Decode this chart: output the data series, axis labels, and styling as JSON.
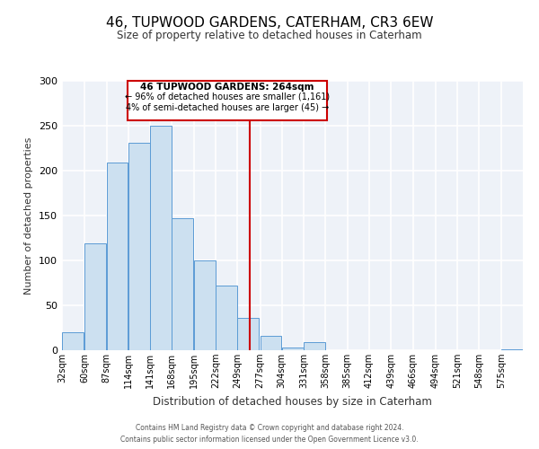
{
  "title": "46, TUPWOOD GARDENS, CATERHAM, CR3 6EW",
  "subtitle": "Size of property relative to detached houses in Caterham",
  "xlabel": "Distribution of detached houses by size in Caterham",
  "ylabel": "Number of detached properties",
  "bin_labels": [
    "32sqm",
    "60sqm",
    "87sqm",
    "114sqm",
    "141sqm",
    "168sqm",
    "195sqm",
    "222sqm",
    "249sqm",
    "277sqm",
    "304sqm",
    "331sqm",
    "358sqm",
    "385sqm",
    "412sqm",
    "439sqm",
    "466sqm",
    "494sqm",
    "521sqm",
    "548sqm",
    "575sqm"
  ],
  "bar_heights": [
    20,
    119,
    209,
    231,
    250,
    147,
    100,
    72,
    36,
    16,
    3,
    9,
    0,
    0,
    0,
    0,
    0,
    0,
    0,
    0,
    1
  ],
  "bar_color": "#cce0f0",
  "bar_edge_color": "#5b9bd5",
  "ylim": [
    0,
    300
  ],
  "yticks": [
    0,
    50,
    100,
    150,
    200,
    250,
    300
  ],
  "property_line_x": 264,
  "property_line_color": "#cc0000",
  "annotation_title": "46 TUPWOOD GARDENS: 264sqm",
  "annotation_line1": "← 96% of detached houses are smaller (1,161)",
  "annotation_line2": "4% of semi-detached houses are larger (45) →",
  "annotation_box_color": "#cc0000",
  "footer_line1": "Contains HM Land Registry data © Crown copyright and database right 2024.",
  "footer_line2": "Contains public sector information licensed under the Open Government Licence v3.0.",
  "bin_starts": [
    32,
    60,
    87,
    114,
    141,
    168,
    195,
    222,
    249,
    277,
    304,
    331,
    358,
    385,
    412,
    439,
    466,
    494,
    521,
    548,
    575
  ],
  "bin_width": 27,
  "fig_width": 6.0,
  "fig_height": 5.0,
  "fig_dpi": 100
}
